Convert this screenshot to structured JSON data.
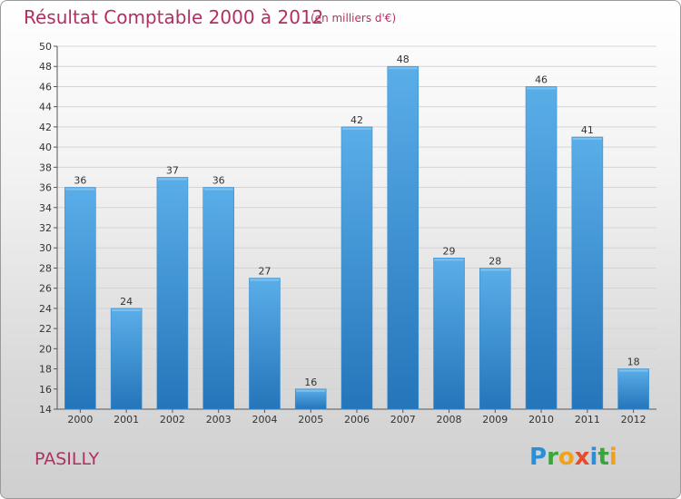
{
  "title": "Résultat Comptable 2000 à 2012",
  "subtitle": "(en milliers d'€)",
  "place": "PASILLY",
  "logo": {
    "text": "Proxiti",
    "letters": [
      {
        "ch": "P",
        "color": "#2a8fd6"
      },
      {
        "ch": "r",
        "color": "#3aa53a"
      },
      {
        "ch": "o",
        "color": "#f0a21a"
      },
      {
        "ch": "x",
        "color": "#e64b2e"
      },
      {
        "ch": "i",
        "color": "#2a8fd6"
      },
      {
        "ch": "t",
        "color": "#3aa53a"
      },
      {
        "ch": "i",
        "color": "#f0a21a"
      }
    ]
  },
  "colors": {
    "bar": "#4b9fe0",
    "bar_dark": "#2577bd",
    "text": "#b22f63"
  },
  "chart_data": {
    "type": "bar",
    "title": "Résultat Comptable 2000 à 2012",
    "ylabel": "(en milliers d'€)",
    "xlabel": "",
    "categories": [
      "2000",
      "2001",
      "2002",
      "2003",
      "2004",
      "2005",
      "2006",
      "2007",
      "2008",
      "2009",
      "2010",
      "2011",
      "2012"
    ],
    "values": [
      36,
      24,
      37,
      36,
      27,
      16,
      42,
      48,
      29,
      28,
      46,
      41,
      18
    ],
    "ylim": [
      14,
      50
    ],
    "yticks": [
      14,
      16,
      18,
      20,
      22,
      24,
      26,
      28,
      30,
      32,
      34,
      36,
      38,
      40,
      42,
      44,
      46,
      48,
      50
    ],
    "grid": true,
    "legend": "none"
  }
}
